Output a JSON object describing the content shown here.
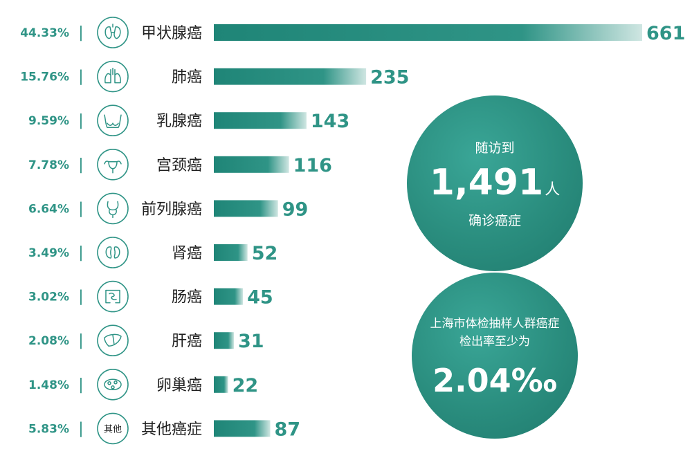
{
  "chart_data": {
    "type": "bar",
    "orientation": "horizontal",
    "categories": [
      "甲状腺癌",
      "肺癌",
      "乳腺癌",
      "宫颈癌",
      "前列腺癌",
      "肾癌",
      "肠癌",
      "肝癌",
      "卵巢癌",
      "其他癌症"
    ],
    "values": [
      661,
      235,
      143,
      116,
      99,
      52,
      45,
      31,
      22,
      87
    ],
    "value_labels": [
      "661",
      "235",
      "143",
      "116",
      "99",
      "52",
      "45",
      "31",
      "22",
      "87"
    ],
    "percentages": [
      "44.33%",
      "15.76%",
      "9.59%",
      "7.78%",
      "6.64%",
      "3.49%",
      "3.02%",
      "2.08%",
      "1.48%",
      "5.83%"
    ],
    "icons": [
      "thyroid-icon",
      "lungs-icon",
      "breast-icon",
      "uterus-icon",
      "prostate-icon",
      "kidneys-icon",
      "intestine-icon",
      "liver-icon",
      "ovary-icon",
      "other-icon"
    ],
    "other_icon_text": "其他",
    "separator": "|",
    "xlim": [
      0,
      661
    ],
    "grid": false,
    "title": "",
    "xlabel": "",
    "ylabel": ""
  },
  "stats": {
    "followup": {
      "line1": "随访到",
      "number": "1,491",
      "unit": "人",
      "line2": "确诊癌症"
    },
    "rate": {
      "text": "上海市体检抽样人群癌症检出率至少为",
      "value": "2.04‰"
    }
  },
  "colors": {
    "accent": "#2f9486",
    "bar": "#25897b",
    "circle": "#2a8d7e",
    "text": "#1f1f1f"
  }
}
